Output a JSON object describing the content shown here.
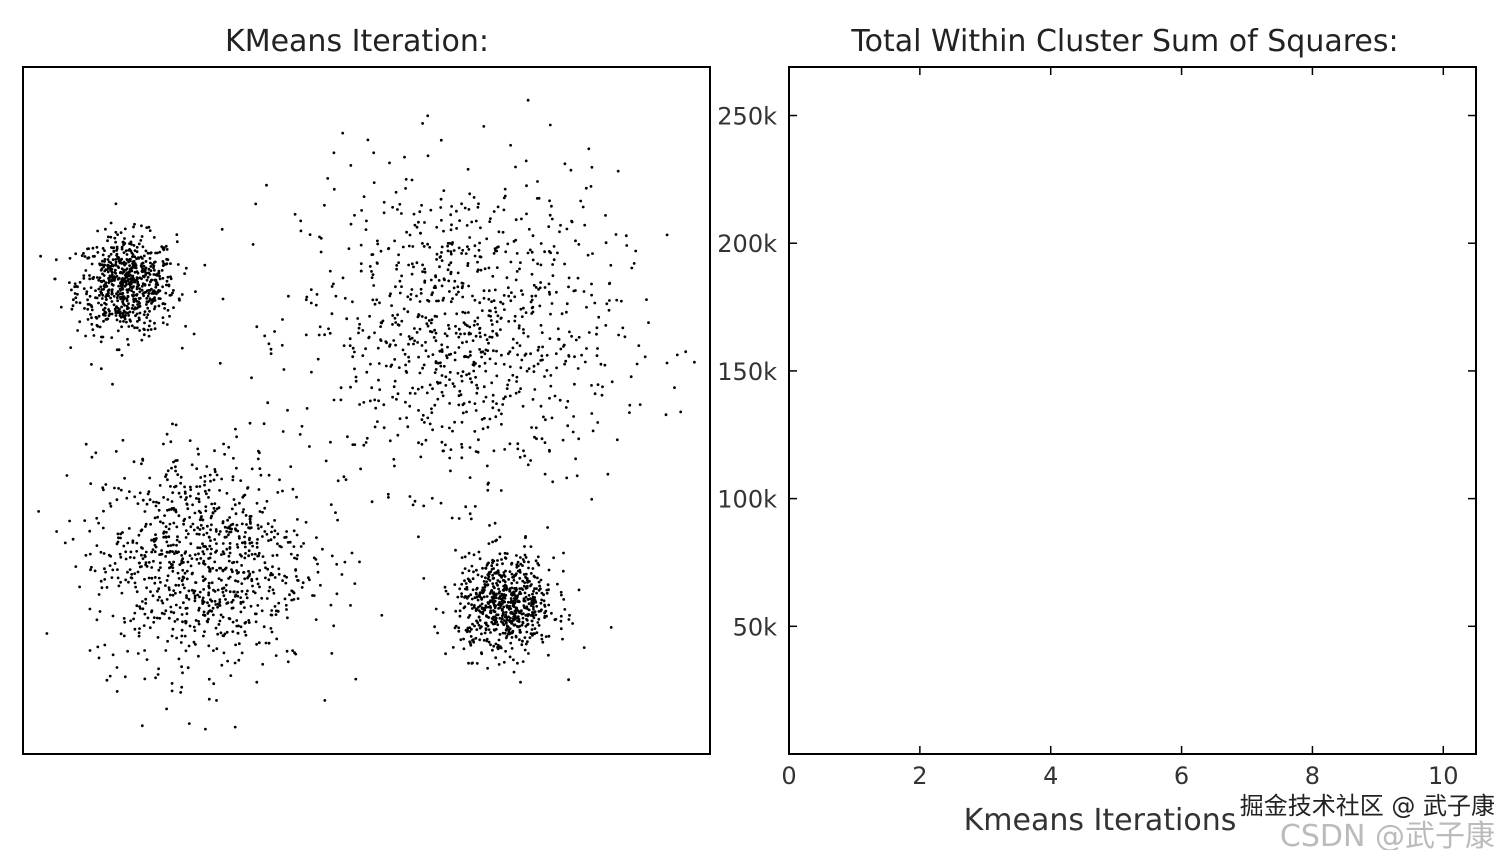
{
  "chart_data": [
    {
      "type": "scatter",
      "title": "KMeans Iteration:",
      "xlabel": "",
      "ylabel": "",
      "xlim": [
        0,
        100
      ],
      "ylim": [
        0,
        100
      ],
      "axis_ticks": false,
      "grid": false,
      "marker_color": "#000000",
      "clusters": [
        {
          "center": [
            15.1,
            68.3
          ],
          "std": 3.6,
          "n": 700
        },
        {
          "center": [
            63.6,
            61.7
          ],
          "std": 11.5,
          "n": 950
        },
        {
          "center": [
            25.8,
            28.2
          ],
          "std": 8.0,
          "n": 950
        },
        {
          "center": [
            70.2,
            21.7
          ],
          "std": 3.6,
          "n": 700
        }
      ]
    },
    {
      "type": "line",
      "title": "Total Within Cluster Sum of Squares:",
      "xlabel": "Kmeans Iterations",
      "ylabel": "",
      "xlim": [
        0,
        10.5
      ],
      "ylim": [
        0,
        269000
      ],
      "x_ticks": [
        0,
        2,
        4,
        6,
        8,
        10
      ],
      "x_tick_labels": [
        "0",
        "2",
        "4",
        "6",
        "8",
        "10"
      ],
      "y_ticks": [
        50000,
        100000,
        150000,
        200000,
        250000
      ],
      "y_tick_labels": [
        "50k",
        "100k",
        "150k",
        "200k",
        "250k"
      ],
      "grid": false,
      "series": []
    }
  ],
  "watermark": {
    "primary": "掘金技术社区 @ 武子康",
    "secondary": "CSDN @武子康"
  }
}
